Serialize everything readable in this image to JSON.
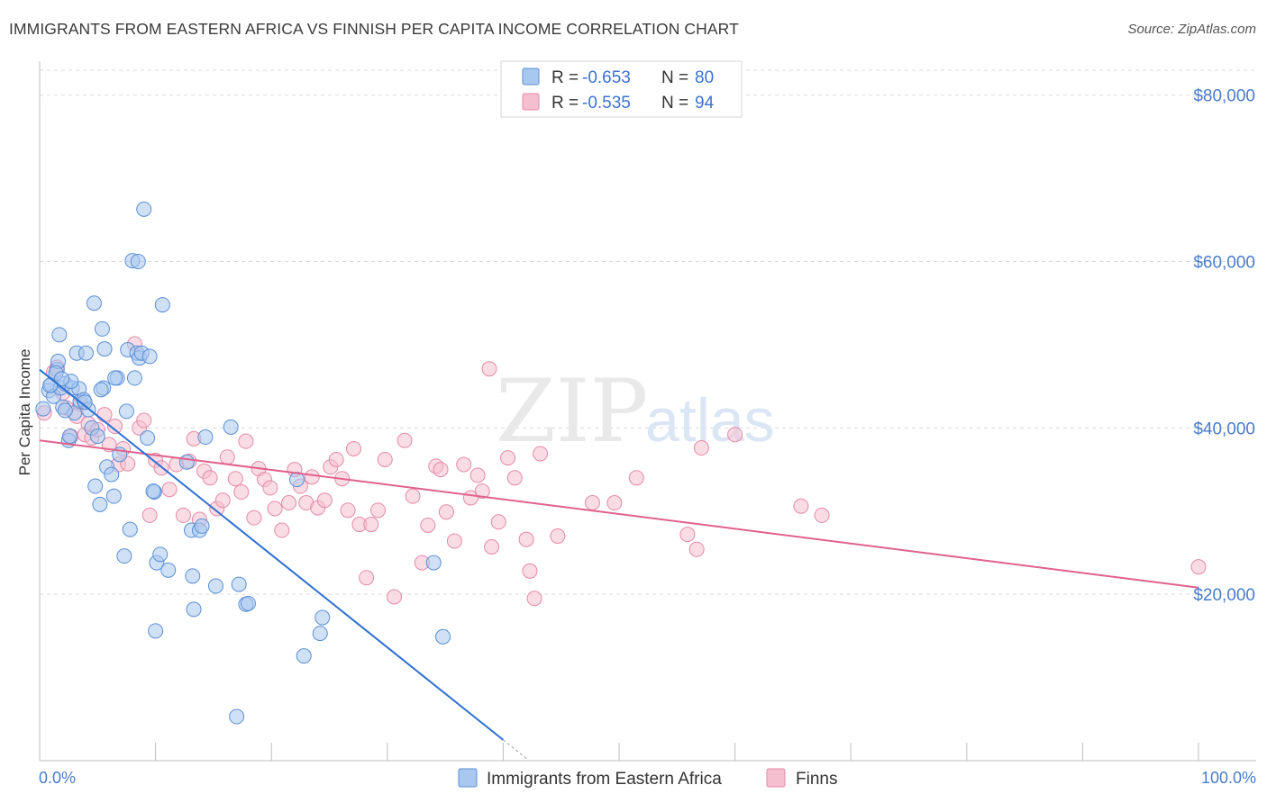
{
  "title": "IMMIGRANTS FROM EASTERN AFRICA VS FINNISH PER CAPITA INCOME CORRELATION CHART",
  "source": "Source: ZipAtlas.com",
  "watermark": {
    "zip": "ZIP",
    "atlas": "atlas"
  },
  "legend": {
    "series": [
      {
        "r_label": "R = ",
        "r_value": "-0.653",
        "n_label": "N = ",
        "n_value": "80"
      },
      {
        "r_label": "R = ",
        "r_value": "-0.535",
        "n_label": "N = ",
        "n_value": "94"
      }
    ]
  },
  "colors": {
    "blue_fill": "#a9c8ef",
    "blue_stroke": "#5a8fd6",
    "blue_line": "#2f6fd0",
    "pink_fill": "#f6bfd0",
    "pink_stroke": "#e48aa8",
    "pink_line": "#e0628c",
    "grid": "#d9d9d9",
    "axis_text": "#4a7cc9"
  },
  "chart_data": {
    "type": "scatter",
    "title": "IMMIGRANTS FROM EASTERN AFRICA VS FINNISH PER CAPITA INCOME CORRELATION CHART",
    "xlabel": "",
    "ylabel": "Per Capita Income",
    "xlim": [
      0,
      100
    ],
    "ylim": [
      0,
      83000
    ],
    "x_tick_labels": [
      "0.0%",
      "100.0%"
    ],
    "y_ticks": [
      20000,
      40000,
      60000,
      80000
    ],
    "y_tick_labels": [
      "$20,000",
      "$40,000",
      "$60,000",
      "$80,000"
    ],
    "grid": true,
    "legend_placement": "top-center",
    "series": [
      {
        "name": "Immigrants from Eastern Africa",
        "r": -0.653,
        "n": 80,
        "trend": {
          "x0": 0,
          "y0": 47000,
          "x1": 40,
          "y1": 2500,
          "dashed_to_x": 42
        },
        "points": [
          [
            0.3,
            42300
          ],
          [
            0.8,
            44500
          ],
          [
            1.0,
            45200
          ],
          [
            1.2,
            43800
          ],
          [
            1.5,
            47000
          ],
          [
            1.6,
            48000
          ],
          [
            1.7,
            51200
          ],
          [
            1.8,
            44800
          ],
          [
            2.0,
            42500
          ],
          [
            2.2,
            45300
          ],
          [
            2.5,
            38500
          ],
          [
            2.6,
            39000
          ],
          [
            2.8,
            44800
          ],
          [
            3.0,
            41800
          ],
          [
            3.2,
            49000
          ],
          [
            3.4,
            44700
          ],
          [
            3.5,
            43200
          ],
          [
            3.8,
            43400
          ],
          [
            4.0,
            49000
          ],
          [
            4.2,
            42200
          ],
          [
            4.5,
            40000
          ],
          [
            4.7,
            55000
          ],
          [
            4.8,
            33000
          ],
          [
            5.0,
            39000
          ],
          [
            5.2,
            30800
          ],
          [
            5.4,
            51900
          ],
          [
            5.5,
            44800
          ],
          [
            5.6,
            49500
          ],
          [
            5.8,
            35300
          ],
          [
            6.2,
            34400
          ],
          [
            6.4,
            31800
          ],
          [
            6.7,
            46000
          ],
          [
            6.9,
            36800
          ],
          [
            7.3,
            24600
          ],
          [
            7.5,
            42000
          ],
          [
            7.6,
            49400
          ],
          [
            7.8,
            27800
          ],
          [
            8.0,
            60100
          ],
          [
            8.2,
            46000
          ],
          [
            8.4,
            49000
          ],
          [
            8.5,
            60000
          ],
          [
            8.6,
            48400
          ],
          [
            8.8,
            49000
          ],
          [
            9.0,
            66300
          ],
          [
            9.3,
            38800
          ],
          [
            9.5,
            48600
          ],
          [
            9.9,
            32300
          ],
          [
            10.1,
            23800
          ],
          [
            10.4,
            24800
          ],
          [
            10.6,
            54800
          ],
          [
            11.1,
            22900
          ],
          [
            12.7,
            35900
          ],
          [
            13.1,
            27700
          ],
          [
            13.2,
            22200
          ],
          [
            13.3,
            18200
          ],
          [
            13.8,
            27700
          ],
          [
            14.0,
            28200
          ],
          [
            14.3,
            38900
          ],
          [
            15.2,
            21000
          ],
          [
            16.5,
            40100
          ],
          [
            17.2,
            21200
          ],
          [
            17.8,
            18800
          ],
          [
            18.0,
            18900
          ],
          [
            22.2,
            33800
          ],
          [
            22.8,
            12600
          ],
          [
            24.2,
            15300
          ],
          [
            24.4,
            17200
          ],
          [
            34.0,
            23800
          ],
          [
            34.8,
            14900
          ],
          [
            17.0,
            5300
          ],
          [
            10.0,
            15600
          ],
          [
            2.7,
            45600
          ],
          [
            1.4,
            46600
          ],
          [
            3.9,
            43100
          ],
          [
            6.5,
            46000
          ],
          [
            1.9,
            45900
          ],
          [
            9.8,
            32400
          ],
          [
            5.3,
            44600
          ],
          [
            2.2,
            42100
          ],
          [
            0.9,
            45100
          ]
        ]
      },
      {
        "name": "Finns",
        "r": -0.535,
        "n": 94,
        "trend": {
          "x0": 0,
          "y0": 38500,
          "x1": 100,
          "y1": 20800
        },
        "points": [
          [
            0.4,
            41800
          ],
          [
            1.2,
            46700
          ],
          [
            1.5,
            47300
          ],
          [
            2.0,
            44200
          ],
          [
            2.3,
            42400
          ],
          [
            2.7,
            39000
          ],
          [
            3.2,
            41400
          ],
          [
            3.5,
            42900
          ],
          [
            3.9,
            39200
          ],
          [
            4.2,
            40500
          ],
          [
            4.5,
            38800
          ],
          [
            5.0,
            39800
          ],
          [
            5.6,
            41600
          ],
          [
            6.0,
            38000
          ],
          [
            6.5,
            40200
          ],
          [
            6.8,
            35600
          ],
          [
            7.2,
            37500
          ],
          [
            7.6,
            35700
          ],
          [
            8.2,
            50100
          ],
          [
            8.6,
            40000
          ],
          [
            9.0,
            40900
          ],
          [
            9.5,
            29500
          ],
          [
            10.0,
            36100
          ],
          [
            10.5,
            35200
          ],
          [
            11.2,
            32600
          ],
          [
            11.8,
            35600
          ],
          [
            12.4,
            29500
          ],
          [
            12.9,
            36000
          ],
          [
            13.3,
            38700
          ],
          [
            13.8,
            29000
          ],
          [
            14.2,
            34800
          ],
          [
            14.7,
            34000
          ],
          [
            15.3,
            30300
          ],
          [
            15.8,
            31300
          ],
          [
            16.2,
            36500
          ],
          [
            16.9,
            33900
          ],
          [
            17.4,
            32300
          ],
          [
            17.8,
            38400
          ],
          [
            18.5,
            29200
          ],
          [
            18.9,
            35100
          ],
          [
            19.4,
            33800
          ],
          [
            19.9,
            32800
          ],
          [
            20.3,
            30300
          ],
          [
            20.9,
            27700
          ],
          [
            21.5,
            31000
          ],
          [
            22.0,
            35000
          ],
          [
            22.5,
            33000
          ],
          [
            23.0,
            31000
          ],
          [
            23.5,
            34100
          ],
          [
            24.0,
            30400
          ],
          [
            24.6,
            31300
          ],
          [
            25.1,
            35300
          ],
          [
            25.6,
            36200
          ],
          [
            26.1,
            33900
          ],
          [
            26.6,
            30100
          ],
          [
            27.1,
            37500
          ],
          [
            27.6,
            28400
          ],
          [
            28.2,
            22000
          ],
          [
            28.6,
            28400
          ],
          [
            29.2,
            30100
          ],
          [
            29.8,
            36200
          ],
          [
            30.6,
            19700
          ],
          [
            31.5,
            38500
          ],
          [
            32.2,
            31800
          ],
          [
            33.0,
            23800
          ],
          [
            33.5,
            28300
          ],
          [
            34.2,
            35400
          ],
          [
            34.6,
            35000
          ],
          [
            35.1,
            29900
          ],
          [
            35.8,
            26400
          ],
          [
            36.6,
            35600
          ],
          [
            37.2,
            31600
          ],
          [
            37.8,
            34300
          ],
          [
            38.2,
            32400
          ],
          [
            39.0,
            25700
          ],
          [
            39.6,
            28700
          ],
          [
            40.4,
            36400
          ],
          [
            41.0,
            34000
          ],
          [
            42.0,
            26600
          ],
          [
            42.3,
            22800
          ],
          [
            42.7,
            19500
          ],
          [
            43.2,
            36900
          ],
          [
            44.7,
            27000
          ],
          [
            47.7,
            31000
          ],
          [
            49.6,
            31000
          ],
          [
            51.5,
            34000
          ],
          [
            55.9,
            27200
          ],
          [
            56.7,
            25400
          ],
          [
            57.1,
            37600
          ],
          [
            60.0,
            39200
          ],
          [
            65.7,
            30600
          ],
          [
            67.5,
            29500
          ],
          [
            100.0,
            23300
          ],
          [
            38.8,
            47100
          ]
        ]
      }
    ]
  }
}
